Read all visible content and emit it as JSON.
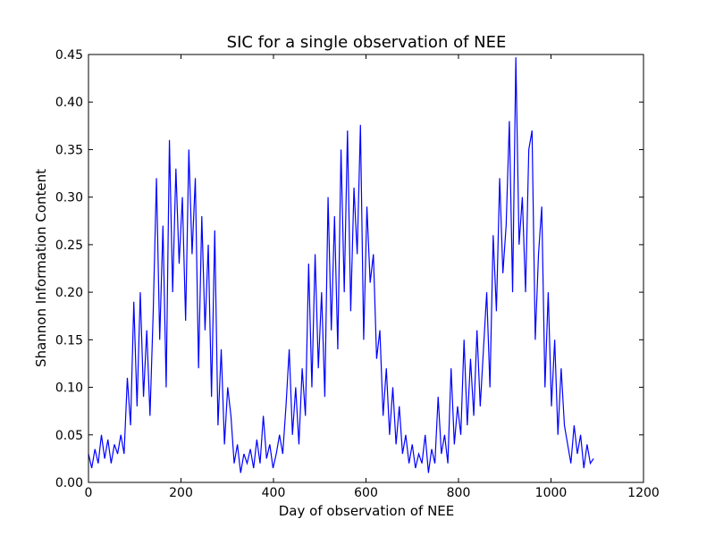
{
  "chart_data": {
    "type": "line",
    "title": "SIC for a single observation of NEE",
    "x_label": "Day of observation of NEE",
    "y_label": "Shannon Information Content",
    "xlim": [
      0,
      1200
    ],
    "xticks": [
      0,
      200,
      400,
      600,
      800,
      1000,
      1200
    ],
    "ylim": [
      0,
      0.45
    ],
    "yticks": [
      {
        "value": 0,
        "label": "0.00"
      },
      0.05,
      {
        "value": 0.1,
        "label": "0.10"
      },
      0.15,
      {
        "value": 0.2,
        "label": "0.20"
      },
      0.25,
      {
        "value": 0.3,
        "label": "0.30"
      },
      0.35,
      {
        "value": 0.4,
        "label": "0.40"
      },
      0.45
    ],
    "series": [
      {
        "color": "#0000ff",
        "x": [
          0,
          7,
          14,
          21,
          28,
          35,
          42,
          49,
          56,
          63,
          70,
          77,
          84,
          91,
          98,
          105,
          112,
          119,
          126,
          133,
          140,
          147,
          154,
          161,
          168,
          175,
          182,
          189,
          196,
          203,
          210,
          217,
          224,
          231,
          238,
          245,
          252,
          259,
          266,
          273,
          280,
          287,
          294,
          301,
          308,
          315,
          322,
          329,
          336,
          343,
          350,
          357,
          364,
          371,
          378,
          385,
          392,
          399,
          406,
          413,
          420,
          427,
          434,
          441,
          448,
          455,
          462,
          469,
          476,
          483,
          490,
          497,
          504,
          511,
          518,
          525,
          532,
          539,
          546,
          553,
          560,
          567,
          574,
          581,
          588,
          595,
          602,
          609,
          616,
          623,
          630,
          637,
          644,
          651,
          658,
          665,
          672,
          679,
          686,
          693,
          700,
          707,
          714,
          721,
          728,
          735,
          742,
          749,
          756,
          763,
          770,
          777,
          784,
          791,
          798,
          805,
          812,
          819,
          826,
          833,
          840,
          847,
          854,
          861,
          868,
          875,
          882,
          889,
          896,
          903,
          910,
          917,
          924,
          931,
          938,
          945,
          952,
          959,
          966,
          973,
          980,
          987,
          994,
          1001,
          1008,
          1015,
          1022,
          1029,
          1036,
          1043,
          1050,
          1057,
          1064,
          1071,
          1078,
          1085,
          1092
        ],
        "values": [
          0.03,
          0.015,
          0.035,
          0.02,
          0.05,
          0.025,
          0.045,
          0.02,
          0.04,
          0.03,
          0.05,
          0.03,
          0.11,
          0.06,
          0.19,
          0.08,
          0.2,
          0.09,
          0.16,
          0.07,
          0.18,
          0.32,
          0.15,
          0.27,
          0.1,
          0.36,
          0.2,
          0.33,
          0.23,
          0.3,
          0.17,
          0.35,
          0.24,
          0.32,
          0.12,
          0.28,
          0.16,
          0.25,
          0.09,
          0.265,
          0.06,
          0.14,
          0.04,
          0.1,
          0.07,
          0.02,
          0.04,
          0.01,
          0.03,
          0.02,
          0.035,
          0.015,
          0.045,
          0.02,
          0.07,
          0.025,
          0.04,
          0.015,
          0.03,
          0.05,
          0.03,
          0.08,
          0.14,
          0.05,
          0.1,
          0.04,
          0.12,
          0.07,
          0.23,
          0.1,
          0.24,
          0.12,
          0.2,
          0.09,
          0.3,
          0.16,
          0.28,
          0.14,
          0.35,
          0.2,
          0.37,
          0.18,
          0.31,
          0.24,
          0.376,
          0.15,
          0.29,
          0.21,
          0.24,
          0.13,
          0.16,
          0.07,
          0.12,
          0.05,
          0.1,
          0.04,
          0.08,
          0.03,
          0.05,
          0.02,
          0.04,
          0.015,
          0.03,
          0.02,
          0.05,
          0.01,
          0.035,
          0.02,
          0.09,
          0.03,
          0.05,
          0.02,
          0.12,
          0.04,
          0.08,
          0.05,
          0.15,
          0.06,
          0.13,
          0.07,
          0.16,
          0.08,
          0.14,
          0.2,
          0.1,
          0.26,
          0.18,
          0.32,
          0.22,
          0.27,
          0.38,
          0.2,
          0.447,
          0.25,
          0.3,
          0.2,
          0.35,
          0.37,
          0.15,
          0.24,
          0.29,
          0.1,
          0.2,
          0.08,
          0.15,
          0.05,
          0.12,
          0.06,
          0.04,
          0.02,
          0.06,
          0.03,
          0.05,
          0.015,
          0.04,
          0.02,
          0.025
        ]
      }
    ]
  }
}
